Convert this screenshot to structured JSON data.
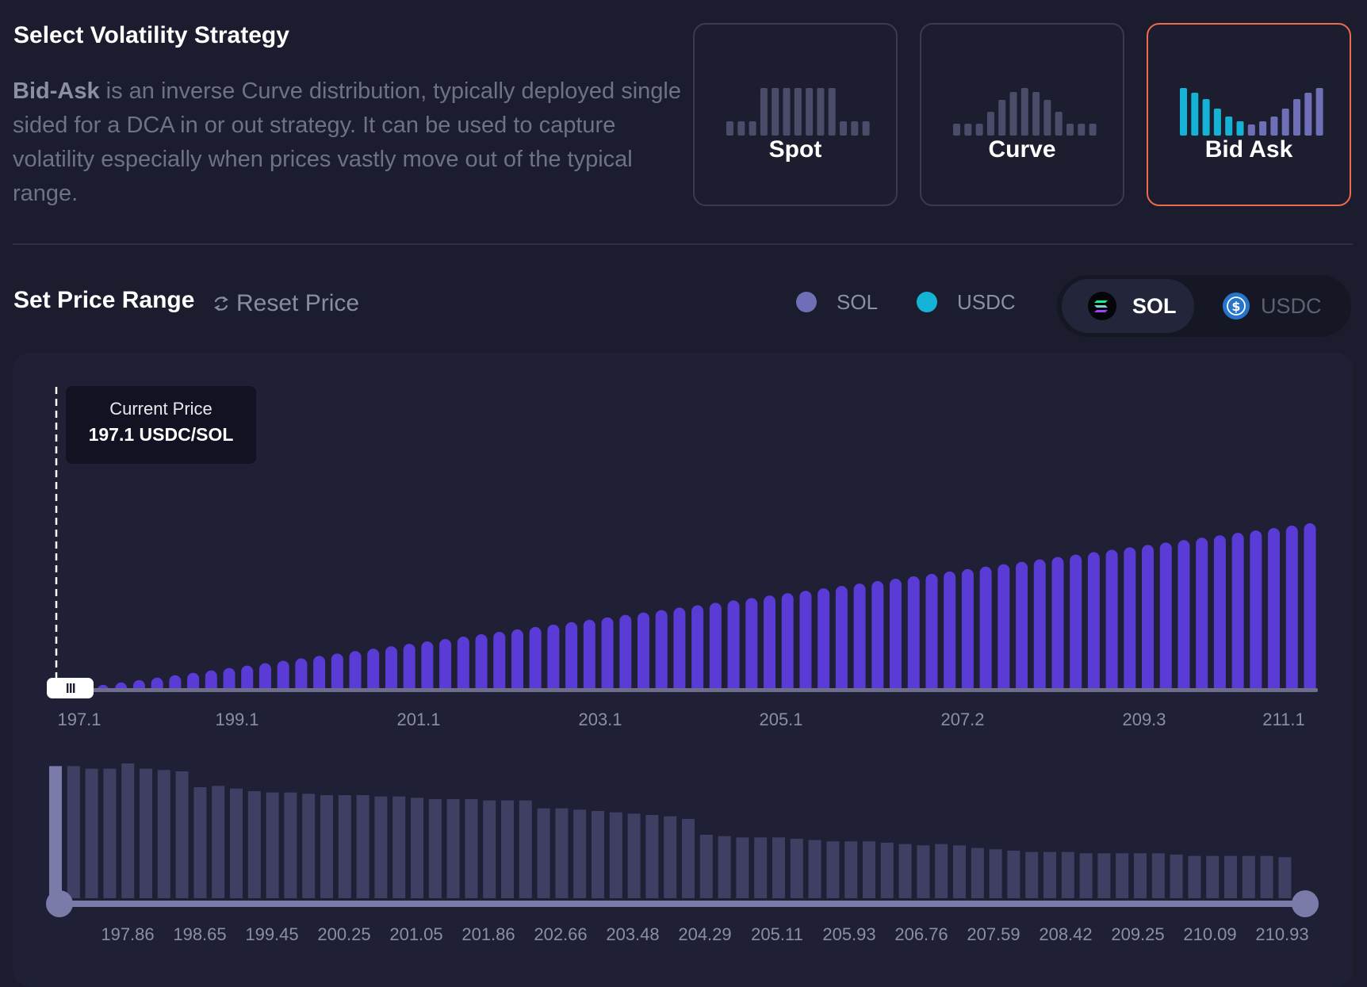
{
  "strategy": {
    "title": "Select Volatility Strategy",
    "desc_bold": "Bid-Ask",
    "desc_rest": " is an inverse Curve distribution, typically deployed single sided for a DCA in or out strategy. It can be used to capture volatility especially when prices vastly move out of the typical range.",
    "options": [
      {
        "label": "Spot",
        "selected": false
      },
      {
        "label": "Curve",
        "selected": false
      },
      {
        "label": "Bid Ask",
        "selected": true
      }
    ]
  },
  "range": {
    "title": "Set Price Range",
    "reset_label": "Reset Price",
    "legend": [
      {
        "label": "SOL",
        "color": "#6e6fb7"
      },
      {
        "label": "USDC",
        "color": "#14b3d6"
      }
    ],
    "toggle": {
      "options": [
        "SOL",
        "USDC"
      ],
      "selected": "SOL"
    }
  },
  "colors": {
    "accent": "#ec6a4e",
    "bar_sol": "#5b3bd6",
    "bar_liquidity": "#3f3f63",
    "range_handle": "#7a7ba8"
  },
  "current_price": {
    "label": "Current Price",
    "value": "197.1 USDC/SOL"
  },
  "chart_data": [
    {
      "type": "bar",
      "series": [
        {
          "values": [
            2,
            3,
            4,
            5,
            6,
            7,
            8,
            9,
            10,
            11,
            12,
            13,
            14,
            15,
            16,
            17,
            18,
            19,
            20,
            21,
            22,
            23,
            24,
            25,
            26,
            27,
            28,
            29,
            30,
            31,
            32,
            33,
            34,
            35,
            36,
            37,
            38,
            39,
            40,
            41,
            42,
            43,
            44,
            45,
            46,
            47,
            48,
            49,
            50,
            51,
            52,
            53,
            54,
            55,
            56,
            57,
            58,
            59,
            60,
            61,
            62,
            63,
            64,
            65,
            66,
            67,
            68,
            69
          ]
        }
      ],
      "x_tick_labels": [
        "197.1",
        "199.1",
        "201.1",
        "203.1",
        "205.1",
        "207.2",
        "209.3",
        "211.1"
      ],
      "current_price": 197.1
    },
    {
      "type": "bar",
      "series": [
        {
          "values": [
            100,
            100,
            98,
            98,
            102,
            98,
            97,
            96,
            84,
            85,
            83,
            81,
            80,
            80,
            79,
            78,
            78,
            78,
            77,
            77,
            76,
            75,
            75,
            75,
            74,
            74,
            74,
            68,
            68,
            67,
            66,
            65,
            64,
            63,
            62,
            60,
            48,
            47,
            46,
            46,
            46,
            45,
            44,
            43,
            43,
            43,
            42,
            41,
            40,
            41,
            40,
            38,
            37,
            36,
            35,
            35,
            35,
            34,
            34,
            34,
            34,
            34,
            33,
            32,
            32,
            32,
            32,
            32,
            31
          ]
        }
      ],
      "x_tick_labels": [
        "197.86",
        "198.65",
        "199.45",
        "200.25",
        "201.05",
        "201.86",
        "202.66",
        "203.48",
        "204.29",
        "205.11",
        "205.93",
        "206.76",
        "207.59",
        "208.42",
        "209.25",
        "210.09",
        "210.93"
      ]
    }
  ]
}
